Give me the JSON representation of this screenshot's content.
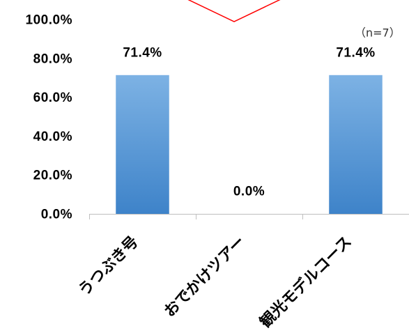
{
  "chart_data": {
    "type": "bar",
    "categories": [
      "うつぶき号",
      "おでかけツアー",
      "観光モデルコース"
    ],
    "values": [
      71.4,
      0.0,
      71.4
    ],
    "data_labels": [
      "71.4%",
      "0.0%",
      "71.4%"
    ],
    "y_ticks": [
      0,
      20,
      40,
      60,
      80,
      100
    ],
    "y_tick_labels": [
      "0.0%",
      "20.0%",
      "40.0%",
      "60.0%",
      "80.0%",
      "100.0%"
    ],
    "ylim": [
      0,
      100
    ],
    "annotation": "（n=7）",
    "grid": false,
    "legend": "none"
  },
  "colors": {
    "bar_light": "#7db2e4",
    "bar_dark": "#3e83c9",
    "axis": "#bfbfbf",
    "callout_stroke": "#ff0000",
    "text": "#000000"
  }
}
